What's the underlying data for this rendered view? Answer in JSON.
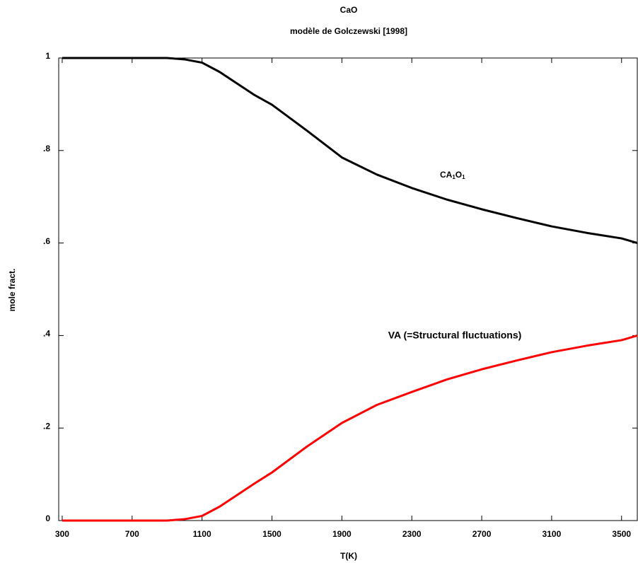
{
  "chart_data": {
    "type": "line",
    "title": "CaO",
    "subtitle": "modèle de Golczewski  [1998]",
    "xlabel": "T(K)",
    "ylabel": "mole fract.",
    "xlim": [
      280,
      3590
    ],
    "ylim": [
      0,
      1
    ],
    "xticks": [
      300,
      700,
      1100,
      1500,
      1900,
      2300,
      2700,
      3100,
      3500
    ],
    "yticks": [
      0,
      {
        "value": 0.2,
        "label": ".2"
      },
      {
        "value": 0.4,
        "label": ".4"
      },
      {
        "value": 0.6,
        "label": ".6"
      },
      {
        "value": 0.8,
        "label": ".8"
      },
      1
    ],
    "x": [
      300,
      700,
      900,
      1000,
      1100,
      1200,
      1300,
      1400,
      1500,
      1700,
      1900,
      2100,
      2300,
      2500,
      2700,
      2900,
      3100,
      3300,
      3500,
      3590
    ],
    "series": [
      {
        "name": "CA1O1",
        "color": "#000000",
        "values": [
          1,
          1,
          1,
          0.997,
          0.99,
          0.97,
          0.945,
          0.92,
          0.899,
          0.843,
          0.785,
          0.748,
          0.719,
          0.694,
          0.673,
          0.654,
          0.636,
          0.622,
          0.61,
          0.6
        ]
      },
      {
        "name": "VA (=Structural fluctuations)",
        "color": "#ff0000",
        "values": [
          0,
          0,
          0,
          0.003,
          0.01,
          0.03,
          0.055,
          0.08,
          0.104,
          0.16,
          0.211,
          0.25,
          0.278,
          0.305,
          0.327,
          0.346,
          0.364,
          0.378,
          0.39,
          0.4
        ]
      }
    ],
    "annotation_parts": [
      "CA",
      "1",
      "O",
      "1"
    ]
  }
}
